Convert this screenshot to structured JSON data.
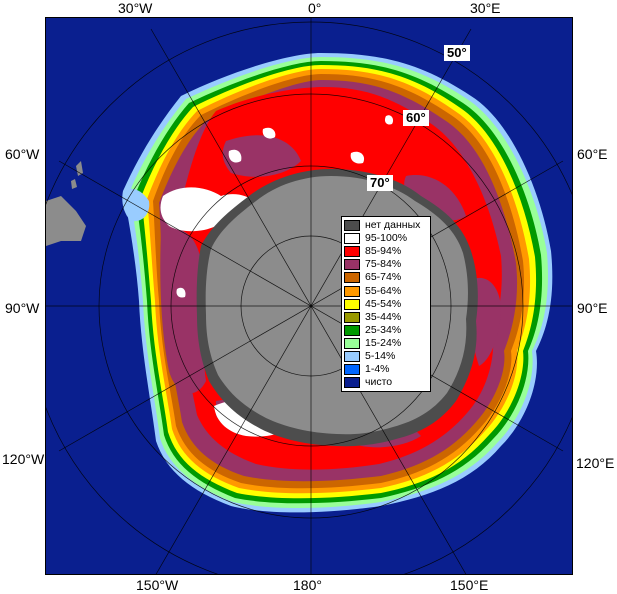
{
  "map": {
    "longitude_labels": {
      "top_30w": "30°W",
      "top_0": "0°",
      "top_30e": "30°E",
      "left_60w": "60°W",
      "left_90w": "90°W",
      "left_120w": "120°W",
      "right_60e": "60°E",
      "right_90e": "90°E",
      "right_120e": "120°E",
      "bottom_150w": "150°W",
      "bottom_180": "180°",
      "bottom_150e": "150°E"
    },
    "latitude_labels": {
      "lat_50": "50°",
      "lat_60": "60°",
      "lat_70": "70°"
    },
    "colors": {
      "ocean": "#0a1f8f",
      "land": "#8c8c8c",
      "no_data": "#4d4d4d",
      "ice_95_100": "#ffffff",
      "ice_85_94": "#ff0000",
      "ice_75_84": "#993366",
      "ice_65_74": "#cc6600"
    }
  },
  "legend": {
    "items": [
      {
        "label": "нет данных",
        "color": "#4d4d4d"
      },
      {
        "label": "95-100%",
        "color": "#ffffff"
      },
      {
        "label": "85-94%",
        "color": "#ff0000"
      },
      {
        "label": "75-84%",
        "color": "#993366"
      },
      {
        "label": "65-74%",
        "color": "#cc6600"
      },
      {
        "label": "55-64%",
        "color": "#ff9900"
      },
      {
        "label": "45-54%",
        "color": "#ffff00"
      },
      {
        "label": "35-44%",
        "color": "#999900"
      },
      {
        "label": "25-34%",
        "color": "#009900"
      },
      {
        "label": "15-24%",
        "color": "#99ff99"
      },
      {
        "label": "5-14%",
        "color": "#99ccff"
      },
      {
        "label": "1-4%",
        "color": "#0066ff"
      },
      {
        "label": "чисто",
        "color": "#0a1f8f"
      }
    ]
  }
}
